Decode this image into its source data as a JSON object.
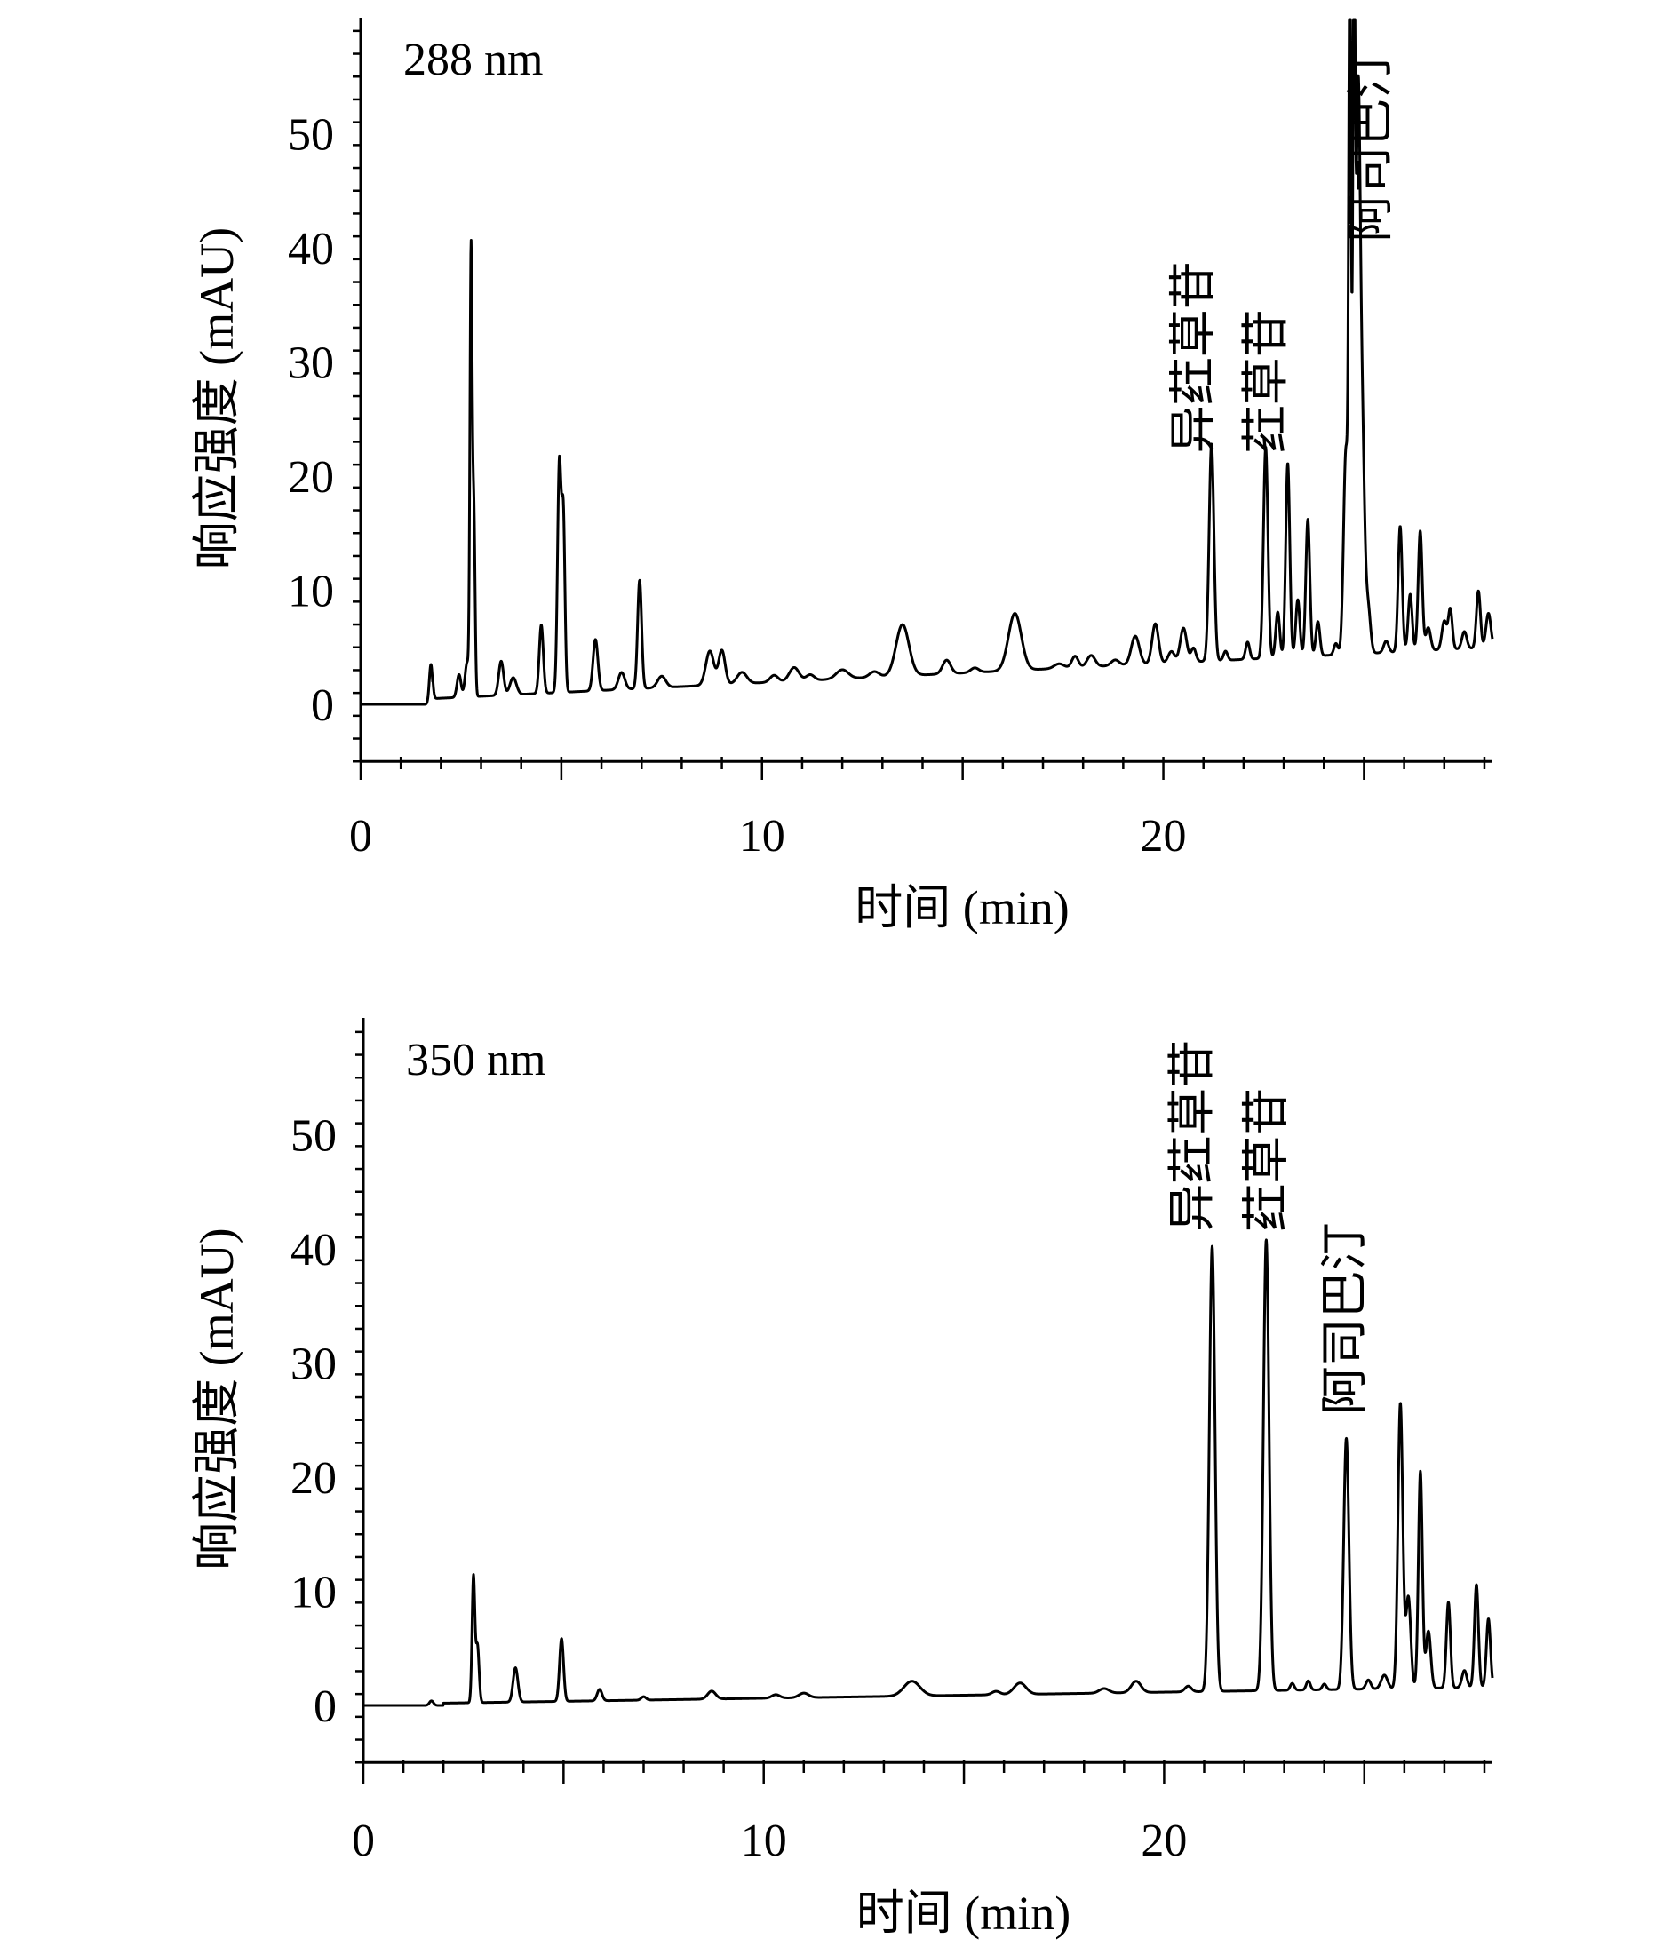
{
  "chart_data": [
    {
      "type": "line",
      "annotation": "288 nm",
      "xlabel": "时间 (min)",
      "ylabel": "响应强度 (mAU)",
      "xlim": [
        0,
        28.2
      ],
      "ylim": [
        -5,
        60
      ],
      "xticks": [
        0,
        10,
        20
      ],
      "yticks": [
        0,
        10,
        20,
        30,
        40,
        50
      ],
      "baseline": {
        "start": 1.8,
        "end": 28.2,
        "from": 0.5,
        "to": 5
      },
      "peaks": [
        {
          "x": 1.75,
          "h": 3.5,
          "w": 0.04
        },
        {
          "x": 2.45,
          "h": 2,
          "w": 0.05
        },
        {
          "x": 2.65,
          "h": 3,
          "w": 0.05
        },
        {
          "x": 2.75,
          "h": 38.5,
          "w": 0.028
        },
        {
          "x": 2.82,
          "h": 16,
          "w": 0.03
        },
        {
          "x": 3.5,
          "h": 3,
          "w": 0.06
        },
        {
          "x": 3.8,
          "h": 1.5,
          "w": 0.08
        },
        {
          "x": 4.5,
          "h": 6,
          "w": 0.05
        },
        {
          "x": 4.95,
          "h": 20,
          "w": 0.045
        },
        {
          "x": 5.05,
          "h": 15,
          "w": 0.04
        },
        {
          "x": 5.85,
          "h": 4.5,
          "w": 0.06
        },
        {
          "x": 6.5,
          "h": 1.5,
          "w": 0.08
        },
        {
          "x": 6.95,
          "h": 9.5,
          "w": 0.05
        },
        {
          "x": 7.5,
          "h": 1,
          "w": 0.1
        },
        {
          "x": 8.7,
          "h": 3,
          "w": 0.1
        },
        {
          "x": 9.0,
          "h": 3,
          "w": 0.08
        },
        {
          "x": 9.5,
          "h": 1,
          "w": 0.12
        },
        {
          "x": 10.3,
          "h": 0.6,
          "w": 0.1
        },
        {
          "x": 10.8,
          "h": 1.2,
          "w": 0.12
        },
        {
          "x": 11.2,
          "h": 0.5,
          "w": 0.1
        },
        {
          "x": 12.0,
          "h": 0.8,
          "w": 0.15
        },
        {
          "x": 12.8,
          "h": 0.5,
          "w": 0.12
        },
        {
          "x": 13.5,
          "h": 4.5,
          "w": 0.16
        },
        {
          "x": 14.6,
          "h": 1.2,
          "w": 0.1
        },
        {
          "x": 15.3,
          "h": 0.4,
          "w": 0.1
        },
        {
          "x": 16.3,
          "h": 5,
          "w": 0.16
        },
        {
          "x": 17.4,
          "h": 0.4,
          "w": 0.12
        },
        {
          "x": 17.8,
          "h": 1,
          "w": 0.08
        },
        {
          "x": 18.2,
          "h": 1,
          "w": 0.1
        },
        {
          "x": 18.8,
          "h": 0.5,
          "w": 0.1
        },
        {
          "x": 19.3,
          "h": 2.5,
          "w": 0.1
        },
        {
          "x": 19.8,
          "h": 3.5,
          "w": 0.08
        },
        {
          "x": 20.2,
          "h": 1,
          "w": 0.08
        },
        {
          "x": 20.5,
          "h": 3,
          "w": 0.08
        },
        {
          "x": 20.75,
          "h": 1.2,
          "w": 0.06
        },
        {
          "x": 21.2,
          "h": 19,
          "w": 0.06
        },
        {
          "x": 21.55,
          "h": 0.8,
          "w": 0.05
        },
        {
          "x": 22.1,
          "h": 1.5,
          "w": 0.05
        },
        {
          "x": 22.55,
          "h": 18.5,
          "w": 0.055
        },
        {
          "x": 22.85,
          "h": 4,
          "w": 0.05
        },
        {
          "x": 23.1,
          "h": 17,
          "w": 0.05
        },
        {
          "x": 23.35,
          "h": 5,
          "w": 0.05
        },
        {
          "x": 23.6,
          "h": 12,
          "w": 0.05
        },
        {
          "x": 23.85,
          "h": 3,
          "w": 0.05
        },
        {
          "x": 24.3,
          "h": 1,
          "w": 0.05
        },
        {
          "x": 24.55,
          "h": 18,
          "w": 0.06
        },
        {
          "x": 24.65,
          "h": 60,
          "w": 0.03
        },
        {
          "x": 24.75,
          "h": 60,
          "w": 0.03
        },
        {
          "x": 24.85,
          "h": 45,
          "w": 0.05
        },
        {
          "x": 24.95,
          "h": 20,
          "w": 0.06
        },
        {
          "x": 25.1,
          "h": 4,
          "w": 0.06
        },
        {
          "x": 25.55,
          "h": 1,
          "w": 0.06
        },
        {
          "x": 25.9,
          "h": 11,
          "w": 0.05
        },
        {
          "x": 26.15,
          "h": 5,
          "w": 0.05
        },
        {
          "x": 26.4,
          "h": 10.5,
          "w": 0.05
        },
        {
          "x": 26.6,
          "h": 2,
          "w": 0.06
        },
        {
          "x": 27.0,
          "h": 2.5,
          "w": 0.06
        },
        {
          "x": 27.15,
          "h": 3.5,
          "w": 0.05
        },
        {
          "x": 27.5,
          "h": 1.5,
          "w": 0.06
        },
        {
          "x": 27.85,
          "h": 5,
          "w": 0.05
        },
        {
          "x": 28.1,
          "h": 3,
          "w": 0.06
        }
      ],
      "annotations": [
        {
          "text": "异荭草苷",
          "x": 21.15,
          "y": 22
        },
        {
          "text": "荭草苷",
          "x": 22.95,
          "y": 22
        },
        {
          "text": "阿司巴汀",
          "x": 25.55,
          "y": 40.5
        }
      ]
    },
    {
      "type": "line",
      "annotation": "350 nm",
      "xlabel": "时间 (min)",
      "ylabel": "响应强度 (mAU)",
      "xlim": [
        0,
        28.2
      ],
      "ylim": [
        -5,
        60
      ],
      "xticks": [
        0,
        10,
        20
      ],
      "yticks": [
        0,
        10,
        20,
        30,
        40,
        50
      ],
      "baseline": {
        "start": 2.0,
        "end": 28.2,
        "from": 0.2,
        "to": 1.6
      },
      "peaks": [
        {
          "x": 1.7,
          "h": 0.4,
          "w": 0.05
        },
        {
          "x": 2.75,
          "h": 11,
          "w": 0.035
        },
        {
          "x": 2.85,
          "h": 5,
          "w": 0.04
        },
        {
          "x": 3.8,
          "h": 3,
          "w": 0.06
        },
        {
          "x": 4.95,
          "h": 5.5,
          "w": 0.05
        },
        {
          "x": 5.9,
          "h": 1,
          "w": 0.06
        },
        {
          "x": 7.0,
          "h": 0.3,
          "w": 0.06
        },
        {
          "x": 8.7,
          "h": 0.7,
          "w": 0.1
        },
        {
          "x": 10.3,
          "h": 0.3,
          "w": 0.1
        },
        {
          "x": 11.0,
          "h": 0.4,
          "w": 0.12
        },
        {
          "x": 13.7,
          "h": 1.3,
          "w": 0.2
        },
        {
          "x": 16.4,
          "h": 1,
          "w": 0.15
        },
        {
          "x": 15.8,
          "h": 0.3,
          "w": 0.1
        },
        {
          "x": 18.5,
          "h": 0.4,
          "w": 0.12
        },
        {
          "x": 19.3,
          "h": 1,
          "w": 0.12
        },
        {
          "x": 20.6,
          "h": 0.5,
          "w": 0.08
        },
        {
          "x": 21.2,
          "h": 39,
          "w": 0.07
        },
        {
          "x": 22.55,
          "h": 39.5,
          "w": 0.07
        },
        {
          "x": 23.2,
          "h": 0.6,
          "w": 0.05
        },
        {
          "x": 23.6,
          "h": 0.8,
          "w": 0.05
        },
        {
          "x": 24.0,
          "h": 0.5,
          "w": 0.05
        },
        {
          "x": 24.55,
          "h": 22,
          "w": 0.065
        },
        {
          "x": 25.1,
          "h": 0.8,
          "w": 0.06
        },
        {
          "x": 25.5,
          "h": 1.2,
          "w": 0.08
        },
        {
          "x": 25.9,
          "h": 25,
          "w": 0.06
        },
        {
          "x": 26.1,
          "h": 8,
          "w": 0.06
        },
        {
          "x": 26.4,
          "h": 19,
          "w": 0.05
        },
        {
          "x": 26.6,
          "h": 5,
          "w": 0.06
        },
        {
          "x": 27.1,
          "h": 7.5,
          "w": 0.05
        },
        {
          "x": 27.5,
          "h": 1.5,
          "w": 0.06
        },
        {
          "x": 27.8,
          "h": 9,
          "w": 0.05
        },
        {
          "x": 28.1,
          "h": 6,
          "w": 0.05
        }
      ],
      "annotations": [
        {
          "text": "异荭草苷",
          "x": 21.1,
          "y": 41.5
        },
        {
          "text": "荭草苷",
          "x": 22.95,
          "y": 41.5
        },
        {
          "text": "阿司巴汀",
          "x": 24.9,
          "y": 25.5
        }
      ]
    }
  ]
}
